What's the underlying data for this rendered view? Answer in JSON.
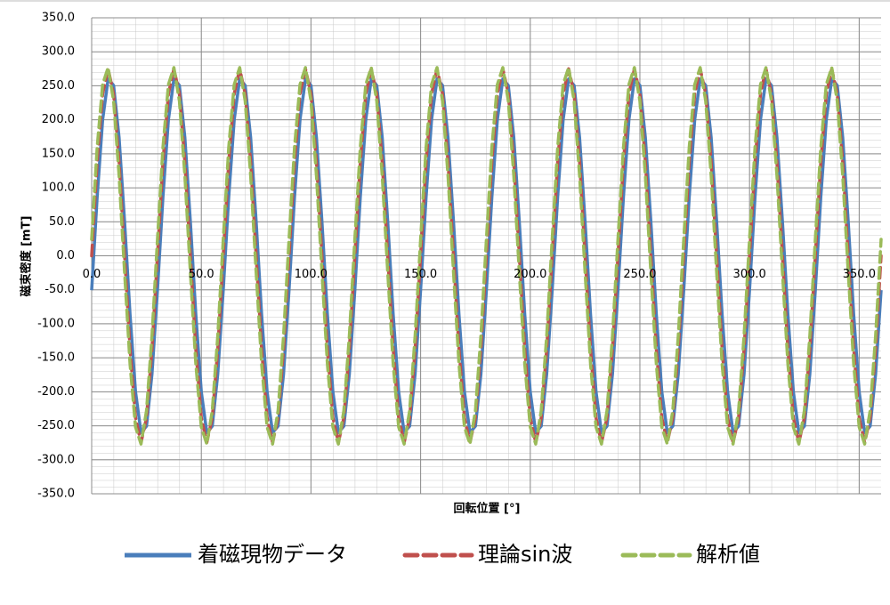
{
  "chart_data": {
    "type": "line",
    "x_label": "回転位置 [°]",
    "y_label": "磁束密度 [mT]",
    "x": [
      0,
      2.5,
      5,
      7.5,
      10,
      12.5,
      15,
      17.5,
      20,
      22.5,
      25,
      27.5,
      30,
      32.5,
      35,
      37.5,
      40,
      42.5,
      45,
      47.5,
      50,
      52.5,
      55,
      57.5,
      60,
      62.5,
      65,
      67.5,
      70,
      72.5,
      75,
      77.5,
      80,
      82.5,
      85,
      87.5,
      90,
      92.5,
      95,
      97.5,
      100,
      102.5,
      105,
      107.5,
      110,
      112.5,
      115,
      117.5,
      120,
      122.5,
      125,
      127.5,
      130,
      132.5,
      135,
      137.5,
      140,
      142.5,
      145,
      147.5,
      150,
      152.5,
      155,
      157.5,
      160,
      162.5,
      165,
      167.5,
      170,
      172.5,
      175,
      177.5,
      180,
      182.5,
      185,
      187.5,
      190,
      192.5,
      195,
      197.5,
      200,
      202.5,
      205,
      207.5,
      210,
      212.5,
      215,
      217.5,
      220,
      222.5,
      225,
      227.5,
      230,
      232.5,
      235,
      237.5,
      240,
      242.5,
      245,
      247.5,
      250,
      252.5,
      255,
      257.5,
      260,
      262.5,
      265,
      267.5,
      270,
      272.5,
      275,
      277.5,
      280,
      282.5,
      285,
      287.5,
      290,
      292.5,
      295,
      297.5,
      300,
      302.5,
      305,
      307.5,
      310,
      312.5,
      315,
      317.5,
      320,
      322.5,
      325,
      327.5,
      330,
      332.5,
      335,
      337.5,
      340,
      342.5,
      345,
      347.5,
      350,
      352.5,
      355,
      357.5,
      360
    ],
    "series": [
      {
        "name": "着磁現物データ",
        "color": "#4a7ebb",
        "line_style": "solid",
        "values": [
          -50.6,
          86.3,
          200.0,
          260.1,
          250.6,
          173.9,
          50.6,
          -86.3,
          -200.0,
          -260.1,
          -250.6,
          -173.9,
          -50.6,
          86.3,
          200.0,
          260.1,
          250.6,
          173.9,
          50.6,
          -86.3,
          -200.0,
          -260.1,
          -250.6,
          -173.9,
          -50.6,
          86.3,
          200.0,
          260.1,
          250.6,
          173.9,
          50.6,
          -86.3,
          -200.0,
          -260.1,
          -250.6,
          -173.9,
          -50.6,
          86.3,
          200.0,
          260.1,
          250.6,
          173.9,
          50.6,
          -86.3,
          -200.0,
          -260.1,
          -250.6,
          -173.9,
          -50.6,
          86.3,
          200.0,
          260.1,
          250.6,
          173.9,
          50.6,
          -86.3,
          -200.0,
          -260.1,
          -250.6,
          -173.9,
          -50.6,
          86.3,
          200.0,
          260.1,
          250.6,
          173.9,
          50.6,
          -86.3,
          -200.0,
          -260.1,
          -250.6,
          -173.9,
          -50.6,
          86.3,
          200.0,
          260.1,
          250.6,
          173.9,
          50.6,
          -86.3,
          -200.0,
          -260.1,
          -250.6,
          -173.9,
          -50.6,
          86.3,
          200.0,
          260.1,
          250.6,
          173.9,
          50.6,
          -86.3,
          -200.0,
          -260.1,
          -250.6,
          -173.9,
          -50.6,
          86.3,
          200.0,
          260.1,
          250.6,
          173.9,
          50.6,
          -86.3,
          -200.0,
          -260.1,
          -250.6,
          -173.9,
          -50.6,
          86.3,
          200.0,
          260.1,
          250.6,
          173.9,
          50.6,
          -86.3,
          -200.0,
          -260.1,
          -250.6,
          -173.9,
          -50.6,
          86.3,
          200.0,
          260.1,
          250.6,
          173.9,
          50.6,
          -86.3,
          -200.0,
          -260.1,
          -250.6,
          -173.9,
          -50.6,
          86.3,
          200.0,
          260.1,
          250.6,
          173.9,
          50.6,
          -86.3,
          -200.0,
          -260.1,
          -250.6,
          -173.9,
          -50.6
        ]
      },
      {
        "name": "理論sin波",
        "color": "#c0504d",
        "line_style": "dashed",
        "values": [
          0,
          137.5,
          238.2,
          275,
          238.2,
          137.5,
          0,
          -137.5,
          -238.2,
          -275,
          -238.2,
          -137.5,
          0,
          137.5,
          238.2,
          275,
          238.2,
          137.5,
          0,
          -137.5,
          -238.2,
          -275,
          -238.2,
          -137.5,
          0,
          137.5,
          238.2,
          275,
          238.2,
          137.5,
          0,
          -137.5,
          -238.2,
          -275,
          -238.2,
          -137.5,
          0,
          137.5,
          238.2,
          275,
          238.2,
          137.5,
          0,
          -137.5,
          -238.2,
          -275,
          -238.2,
          -137.5,
          0,
          137.5,
          238.2,
          275,
          238.2,
          137.5,
          0,
          -137.5,
          -238.2,
          -275,
          -238.2,
          -137.5,
          0,
          137.5,
          238.2,
          275,
          238.2,
          137.5,
          0,
          -137.5,
          -238.2,
          -275,
          -238.2,
          -137.5,
          0,
          137.5,
          238.2,
          275,
          238.2,
          137.5,
          0,
          -137.5,
          -238.2,
          -275,
          -238.2,
          -137.5,
          0,
          137.5,
          238.2,
          275,
          238.2,
          137.5,
          0,
          -137.5,
          -238.2,
          -275,
          -238.2,
          -137.5,
          0,
          137.5,
          238.2,
          275,
          238.2,
          137.5,
          0,
          -137.5,
          -238.2,
          -275,
          -238.2,
          -137.5,
          0,
          137.5,
          238.2,
          275,
          238.2,
          137.5,
          0,
          -137.5,
          -238.2,
          -275,
          -238.2,
          -137.5,
          0,
          137.5,
          238.2,
          275,
          238.2,
          137.5,
          0,
          -137.5,
          -238.2,
          -275,
          -238.2,
          -137.5,
          0,
          137.5,
          238.2,
          275,
          238.2,
          137.5,
          0,
          -137.5,
          -238.2,
          -275,
          -238.2,
          -137.5,
          0
        ]
      },
      {
        "name": "解析値",
        "color": "#9bbb59",
        "line_style": "dashed",
        "values": [
          24.2,
          159.5,
          251.9,
          276.9,
          227.7,
          117.6,
          -24.2,
          -159.5,
          -251.9,
          -276.9,
          -227.7,
          -117.6,
          24.2,
          159.5,
          251.9,
          276.9,
          227.7,
          117.6,
          -24.2,
          -159.5,
          -251.9,
          -276.9,
          -227.7,
          -117.6,
          24.2,
          159.5,
          251.9,
          276.9,
          227.7,
          117.6,
          -24.2,
          -159.5,
          -251.9,
          -276.9,
          -227.7,
          -117.6,
          24.2,
          159.5,
          251.9,
          276.9,
          227.7,
          117.6,
          -24.2,
          -159.5,
          -251.9,
          -276.9,
          -227.7,
          -117.6,
          24.2,
          159.5,
          251.9,
          276.9,
          227.7,
          117.6,
          -24.2,
          -159.5,
          -251.9,
          -276.9,
          -227.7,
          -117.6,
          24.2,
          159.5,
          251.9,
          276.9,
          227.7,
          117.6,
          -24.2,
          -159.5,
          -251.9,
          -276.9,
          -227.7,
          -117.6,
          24.2,
          159.5,
          251.9,
          276.9,
          227.7,
          117.6,
          -24.2,
          -159.5,
          -251.9,
          -276.9,
          -227.7,
          -117.6,
          24.2,
          159.5,
          251.9,
          276.9,
          227.7,
          117.6,
          -24.2,
          -159.5,
          -251.9,
          -276.9,
          -227.7,
          -117.6,
          24.2,
          159.5,
          251.9,
          276.9,
          227.7,
          117.6,
          -24.2,
          -159.5,
          -251.9,
          -276.9,
          -227.7,
          -117.6,
          24.2,
          159.5,
          251.9,
          276.9,
          227.7,
          117.6,
          -24.2,
          -159.5,
          -251.9,
          -276.9,
          -227.7,
          -117.6,
          24.2,
          159.5,
          251.9,
          276.9,
          227.7,
          117.6,
          -24.2,
          -159.5,
          -251.9,
          -276.9,
          -227.7,
          -117.6,
          24.2,
          159.5,
          251.9,
          276.9,
          227.7,
          117.6,
          -24.2,
          -159.5,
          -251.9,
          -276.9,
          -227.7,
          -117.6,
          24.2
        ]
      }
    ],
    "xlim": [
      0,
      360
    ],
    "ylim": [
      -350,
      350
    ],
    "xticks": [
      {
        "value": 0,
        "label": "0.0"
      },
      {
        "value": 50,
        "label": "50.0"
      },
      {
        "value": 100,
        "label": "100.0"
      },
      {
        "value": 150,
        "label": "150.0"
      },
      {
        "value": 200,
        "label": "200.0"
      },
      {
        "value": 250,
        "label": "250.0"
      },
      {
        "value": 300,
        "label": "300.0"
      },
      {
        "value": 350,
        "label": "350.0"
      }
    ],
    "yticks": [
      {
        "value": -350,
        "label": "-350.0"
      },
      {
        "value": -300,
        "label": "-300.0"
      },
      {
        "value": -250,
        "label": "-250.0"
      },
      {
        "value": -200,
        "label": "-200.0"
      },
      {
        "value": -150,
        "label": "-150.0"
      },
      {
        "value": -100,
        "label": "-100.0"
      },
      {
        "value": -50,
        "label": "-50.0"
      },
      {
        "value": 0,
        "label": "0.0"
      },
      {
        "value": 50,
        "label": "50.0"
      },
      {
        "value": 100,
        "label": "100.0"
      },
      {
        "value": 150,
        "label": "150.0"
      },
      {
        "value": 200,
        "label": "200.0"
      },
      {
        "value": 250,
        "label": "250.0"
      },
      {
        "value": 300,
        "label": "300.0"
      },
      {
        "value": 350,
        "label": "350.0"
      }
    ],
    "grid": true,
    "legend": "bottom"
  }
}
